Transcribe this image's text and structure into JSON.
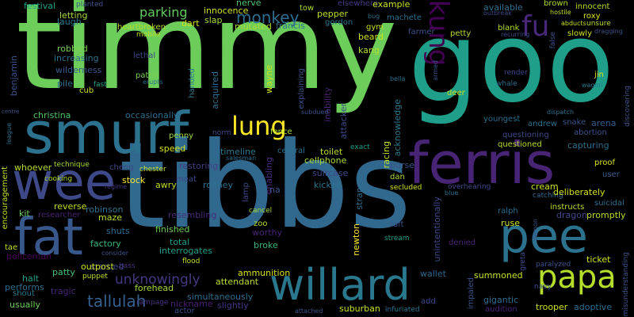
{
  "words": [
    {
      "text": "timmy",
      "color": "#6ccd5a"
    },
    {
      "text": "goo",
      "color": "#1f9e89"
    },
    {
      "text": "tibbs",
      "color": "#31688e"
    },
    {
      "text": "smurf",
      "color": "#2c728e"
    },
    {
      "text": "ferris",
      "color": "#482475"
    },
    {
      "text": "wee",
      "color": "#3e4989"
    },
    {
      "text": "fat",
      "color": "#38588c"
    },
    {
      "text": "pee",
      "color": "#2c728e"
    },
    {
      "text": "willard",
      "color": "#2a788e"
    },
    {
      "text": "papa",
      "color": "#b5de2b"
    },
    {
      "text": "kung",
      "color": "#440154"
    },
    {
      "text": "fu",
      "color": "#482878"
    },
    {
      "text": "lung",
      "color": "#fde725"
    },
    {
      "text": "tallulah",
      "color": "#35608d"
    },
    {
      "text": "unknowingly",
      "color": "#453781"
    },
    {
      "text": "monkey",
      "color": "#2e6e8e"
    },
    {
      "text": "parking",
      "color": "#63cb5f"
    },
    {
      "text": "festival",
      "color": "#1fa188"
    },
    {
      "text": "planted",
      "color": "#3b528b"
    },
    {
      "text": "innocence",
      "color": "#cfe11c"
    },
    {
      "text": "letting",
      "color": "#a8db34"
    },
    {
      "text": "laugh",
      "color": "#2a788e"
    },
    {
      "text": "robbed",
      "color": "#7ad151"
    },
    {
      "text": "increasing",
      "color": "#2c728e"
    },
    {
      "text": "wilderness",
      "color": "#38588c"
    },
    {
      "text": "heartbroken",
      "color": "#b8de29"
    },
    {
      "text": "lethal",
      "color": "#3e4989"
    },
    {
      "text": "mobile",
      "color": "#c2df23"
    },
    {
      "text": "patrol",
      "color": "#7ad151"
    },
    {
      "text": "erupts",
      "color": "#2d708e"
    },
    {
      "text": "pile",
      "color": "#2d708e"
    },
    {
      "text": "fast",
      "color": "#20a486"
    },
    {
      "text": "cub",
      "color": "#d2e21b"
    },
    {
      "text": "christina",
      "color": "#52c569"
    },
    {
      "text": "occasionally",
      "color": "#2e6e8e"
    },
    {
      "text": "benjamin",
      "color": "#3b528b"
    },
    {
      "text": "whoever",
      "color": "#b8de29"
    },
    {
      "text": "encouragement",
      "color": "#c2df23"
    },
    {
      "text": "technique",
      "color": "#a8db34"
    },
    {
      "text": "cooking",
      "color": "#addc30"
    },
    {
      "text": "cheng",
      "color": "#3e4989"
    },
    {
      "text": "chester",
      "color": "#c8e020"
    },
    {
      "text": "speed",
      "color": "#d8e219"
    },
    {
      "text": "penny",
      "color": "#9fda3a"
    },
    {
      "text": "norm",
      "color": "#3e4989"
    },
    {
      "text": "timeline",
      "color": "#2a788e"
    },
    {
      "text": "salesman",
      "color": "#2e6e8e"
    },
    {
      "text": "restoring",
      "color": "#433e85"
    },
    {
      "text": "stock",
      "color": "#fde725"
    },
    {
      "text": "awry",
      "color": "#bddf26"
    },
    {
      "text": "meat",
      "color": "#3f4889"
    },
    {
      "text": "rooney",
      "color": "#2d708e"
    },
    {
      "text": "toilet",
      "color": "#b5de2b"
    },
    {
      "text": "cellphone",
      "color": "#a8db34"
    },
    {
      "text": "central",
      "color": "#2c728e"
    },
    {
      "text": "exact",
      "color": "#1f9e89"
    },
    {
      "text": "suitcase",
      "color": "#3e4989"
    },
    {
      "text": "kicked",
      "color": "#2c728e"
    },
    {
      "text": "dan",
      "color": "#addc30"
    },
    {
      "text": "purse",
      "color": "#3b528b"
    },
    {
      "text": "secluded",
      "color": "#d2e21b"
    },
    {
      "text": "cream",
      "color": "#cde11d"
    },
    {
      "text": "catching",
      "color": "#31688e"
    },
    {
      "text": "overhearing",
      "color": "#3e4989"
    },
    {
      "text": "blue",
      "color": "#2e6e8e"
    },
    {
      "text": "reverse",
      "color": "#c2df23"
    },
    {
      "text": "robinson",
      "color": "#2c728e"
    },
    {
      "text": "researcher",
      "color": "#482173"
    },
    {
      "text": "kit",
      "color": "#6ccd5a"
    },
    {
      "text": "maze",
      "color": "#b8de29"
    },
    {
      "text": "regime",
      "color": "#453882"
    },
    {
      "text": "zoo",
      "color": "#b5de2b"
    },
    {
      "text": "worthy",
      "color": "#482475"
    },
    {
      "text": "cancel",
      "color": "#a0da39"
    },
    {
      "text": "resembling",
      "color": "#472d7b"
    },
    {
      "text": "finished",
      "color": "#6ece58"
    },
    {
      "text": "shuts",
      "color": "#2e6e8e"
    },
    {
      "text": "factory",
      "color": "#35b779"
    },
    {
      "text": "total",
      "color": "#1f9e89"
    },
    {
      "text": "interrogates",
      "color": "#1f9e89"
    },
    {
      "text": "broke",
      "color": "#35b779"
    },
    {
      "text": "startled",
      "color": "#3f4889"
    },
    {
      "text": "bass",
      "color": "#46327e"
    },
    {
      "text": "flood",
      "color": "#c2df23"
    },
    {
      "text": "consider",
      "color": "#3b528b"
    },
    {
      "text": "outpost",
      "color": "#cfe11c"
    },
    {
      "text": "patty",
      "color": "#4ac16d"
    },
    {
      "text": "puppet",
      "color": "#b8de29"
    },
    {
      "text": "forehead",
      "color": "#a5db36"
    },
    {
      "text": "attendant",
      "color": "#b8de29"
    },
    {
      "text": "ammunition",
      "color": "#d8e219"
    },
    {
      "text": "policeman",
      "color": "#440154"
    },
    {
      "text": "tae",
      "color": "#c2df23"
    },
    {
      "text": "halt",
      "color": "#1f9e89"
    },
    {
      "text": "performs",
      "color": "#2e6e8e"
    },
    {
      "text": "shout",
      "color": "#29798e"
    },
    {
      "text": "usually",
      "color": "#6ece58"
    },
    {
      "text": "tragic",
      "color": "#482475"
    },
    {
      "text": "rampage",
      "color": "#46327e"
    },
    {
      "text": "simultaneously",
      "color": "#2e6e8e"
    },
    {
      "text": "nickname",
      "color": "#481f70"
    },
    {
      "text": "slightly",
      "color": "#453781"
    },
    {
      "text": "actor",
      "color": "#3e4989"
    },
    {
      "text": "suburban",
      "color": "#c8e020"
    },
    {
      "text": "infuriated",
      "color": "#2c728e"
    },
    {
      "text": "attached",
      "color": "#3b528b"
    },
    {
      "text": "add",
      "color": "#3e4989"
    },
    {
      "text": "wallet",
      "color": "#31688e"
    },
    {
      "text": "stream",
      "color": "#1f9e89"
    },
    {
      "text": "raft",
      "color": "#3b528b"
    },
    {
      "text": "unintentionally",
      "color": "#3e4989"
    },
    {
      "text": "newton",
      "color": "#fde725"
    },
    {
      "text": "stranger",
      "color": "#2e6e8e"
    },
    {
      "text": "racing",
      "color": "#c2df23"
    },
    {
      "text": "acknowledge",
      "color": "#2a788e"
    },
    {
      "text": "enabling",
      "color": "#482878"
    },
    {
      "text": "na",
      "color": "#3b528b"
    },
    {
      "text": "lamp",
      "color": "#3e4989"
    },
    {
      "text": "fence",
      "color": "#addc30"
    },
    {
      "text": "explaining",
      "color": "#3b528b"
    },
    {
      "text": "inability",
      "color": "#482475"
    },
    {
      "text": "attacker",
      "color": "#3e4989"
    },
    {
      "text": "subdued",
      "color": "#3b528b"
    },
    {
      "text": "wayne",
      "color": "#cfe11c"
    },
    {
      "text": "acquired",
      "color": "#2e6e8e"
    },
    {
      "text": "handed",
      "color": "#2a788e"
    },
    {
      "text": "dart",
      "color": "#d2e21b"
    },
    {
      "text": "slap",
      "color": "#a8db34"
    },
    {
      "text": "mutated",
      "color": "#addc30"
    },
    {
      "text": "francis",
      "color": "#2d708e"
    },
    {
      "text": "nerve",
      "color": "#4ac16d"
    },
    {
      "text": "tow",
      "color": "#addc30"
    },
    {
      "text": "elsewhere",
      "color": "#453882"
    },
    {
      "text": "pepper",
      "color": "#bddf26"
    },
    {
      "text": "gordon",
      "color": "#2c728e"
    },
    {
      "text": "gym",
      "color": "#cde11d"
    },
    {
      "text": "beard",
      "color": "#d2e21b"
    },
    {
      "text": "kang",
      "color": "#b5de2b"
    },
    {
      "text": "example",
      "color": "#c8e020"
    },
    {
      "text": "bug",
      "color": "#2d708e"
    },
    {
      "text": "machete",
      "color": "#2d708e"
    },
    {
      "text": "farmer",
      "color": "#3b528b"
    },
    {
      "text": "petty",
      "color": "#b8de29"
    },
    {
      "text": "bella",
      "color": "#2d708e"
    },
    {
      "text": "armed",
      "color": "#3b528b"
    },
    {
      "text": "deer",
      "color": "#cfe11c"
    },
    {
      "text": "centre",
      "color": "#3b528b"
    },
    {
      "text": "league",
      "color": "#2d708e"
    },
    {
      "text": "available",
      "color": "#2e6e8e"
    },
    {
      "text": "outbreak",
      "color": "#3e4989"
    },
    {
      "text": "blank",
      "color": "#b5de2b"
    },
    {
      "text": "recurring",
      "color": "#3e4989"
    },
    {
      "text": "brown",
      "color": "#addc30"
    },
    {
      "text": "hostile",
      "color": "#c2df23"
    },
    {
      "text": "abducts",
      "color": "#c8e020"
    },
    {
      "text": "innocent",
      "color": "#b8de29"
    },
    {
      "text": "roxy",
      "color": "#d8e219"
    },
    {
      "text": "unsure",
      "color": "#b5de2b"
    },
    {
      "text": "dragging",
      "color": "#3b528b"
    },
    {
      "text": "false",
      "color": "#3b528b"
    },
    {
      "text": "slowly",
      "color": "#cde11d"
    },
    {
      "text": "render",
      "color": "#3e4989"
    },
    {
      "text": "whale",
      "color": "#2e6e8e"
    },
    {
      "text": "jin",
      "color": "#d8e219"
    },
    {
      "text": "wagon",
      "color": "#2a788e"
    },
    {
      "text": "dispatch",
      "color": "#2e6e8e"
    },
    {
      "text": "youngest",
      "color": "#2e6e8e"
    },
    {
      "text": "andrew",
      "color": "#2d708e"
    },
    {
      "text": "snake",
      "color": "#3b528b"
    },
    {
      "text": "arena",
      "color": "#35608d"
    },
    {
      "text": "questioning",
      "color": "#3e4989"
    },
    {
      "text": "abortion",
      "color": "#3b528b"
    },
    {
      "text": "questioned",
      "color": "#b5de2b"
    },
    {
      "text": "capturing",
      "color": "#2e6e8e"
    },
    {
      "text": "discovering",
      "color": "#3b528b"
    },
    {
      "text": "proof",
      "color": "#d8e219"
    },
    {
      "text": "user",
      "color": "#35608d"
    },
    {
      "text": "deliberately",
      "color": "#d2e21b"
    },
    {
      "text": "instructs",
      "color": "#b8de29"
    },
    {
      "text": "suicidal",
      "color": "#2e6e8e"
    },
    {
      "text": "dragon",
      "color": "#3e4989"
    },
    {
      "text": "promptly",
      "color": "#b8de29"
    },
    {
      "text": "ralph",
      "color": "#2d708e"
    },
    {
      "text": "demon",
      "color": "#3b528b"
    },
    {
      "text": "ruse",
      "color": "#cfe11c"
    },
    {
      "text": "denied",
      "color": "#482475"
    },
    {
      "text": "greta",
      "color": "#3b528b"
    },
    {
      "text": "ticket",
      "color": "#cfe11c"
    },
    {
      "text": "paralyzed",
      "color": "#3b528b"
    },
    {
      "text": "summoned",
      "color": "#c8e020"
    },
    {
      "text": "navy",
      "color": "#3b528b"
    },
    {
      "text": "impaled",
      "color": "#3b528b"
    },
    {
      "text": "gigantic",
      "color": "#2e6e8e"
    },
    {
      "text": "audition",
      "color": "#482475"
    },
    {
      "text": "trooper",
      "color": "#cfe11c"
    },
    {
      "text": "adoptive",
      "color": "#2e6e8e"
    },
    {
      "text": "misunderstanding",
      "color": "#3b528b"
    }
  ]
}
